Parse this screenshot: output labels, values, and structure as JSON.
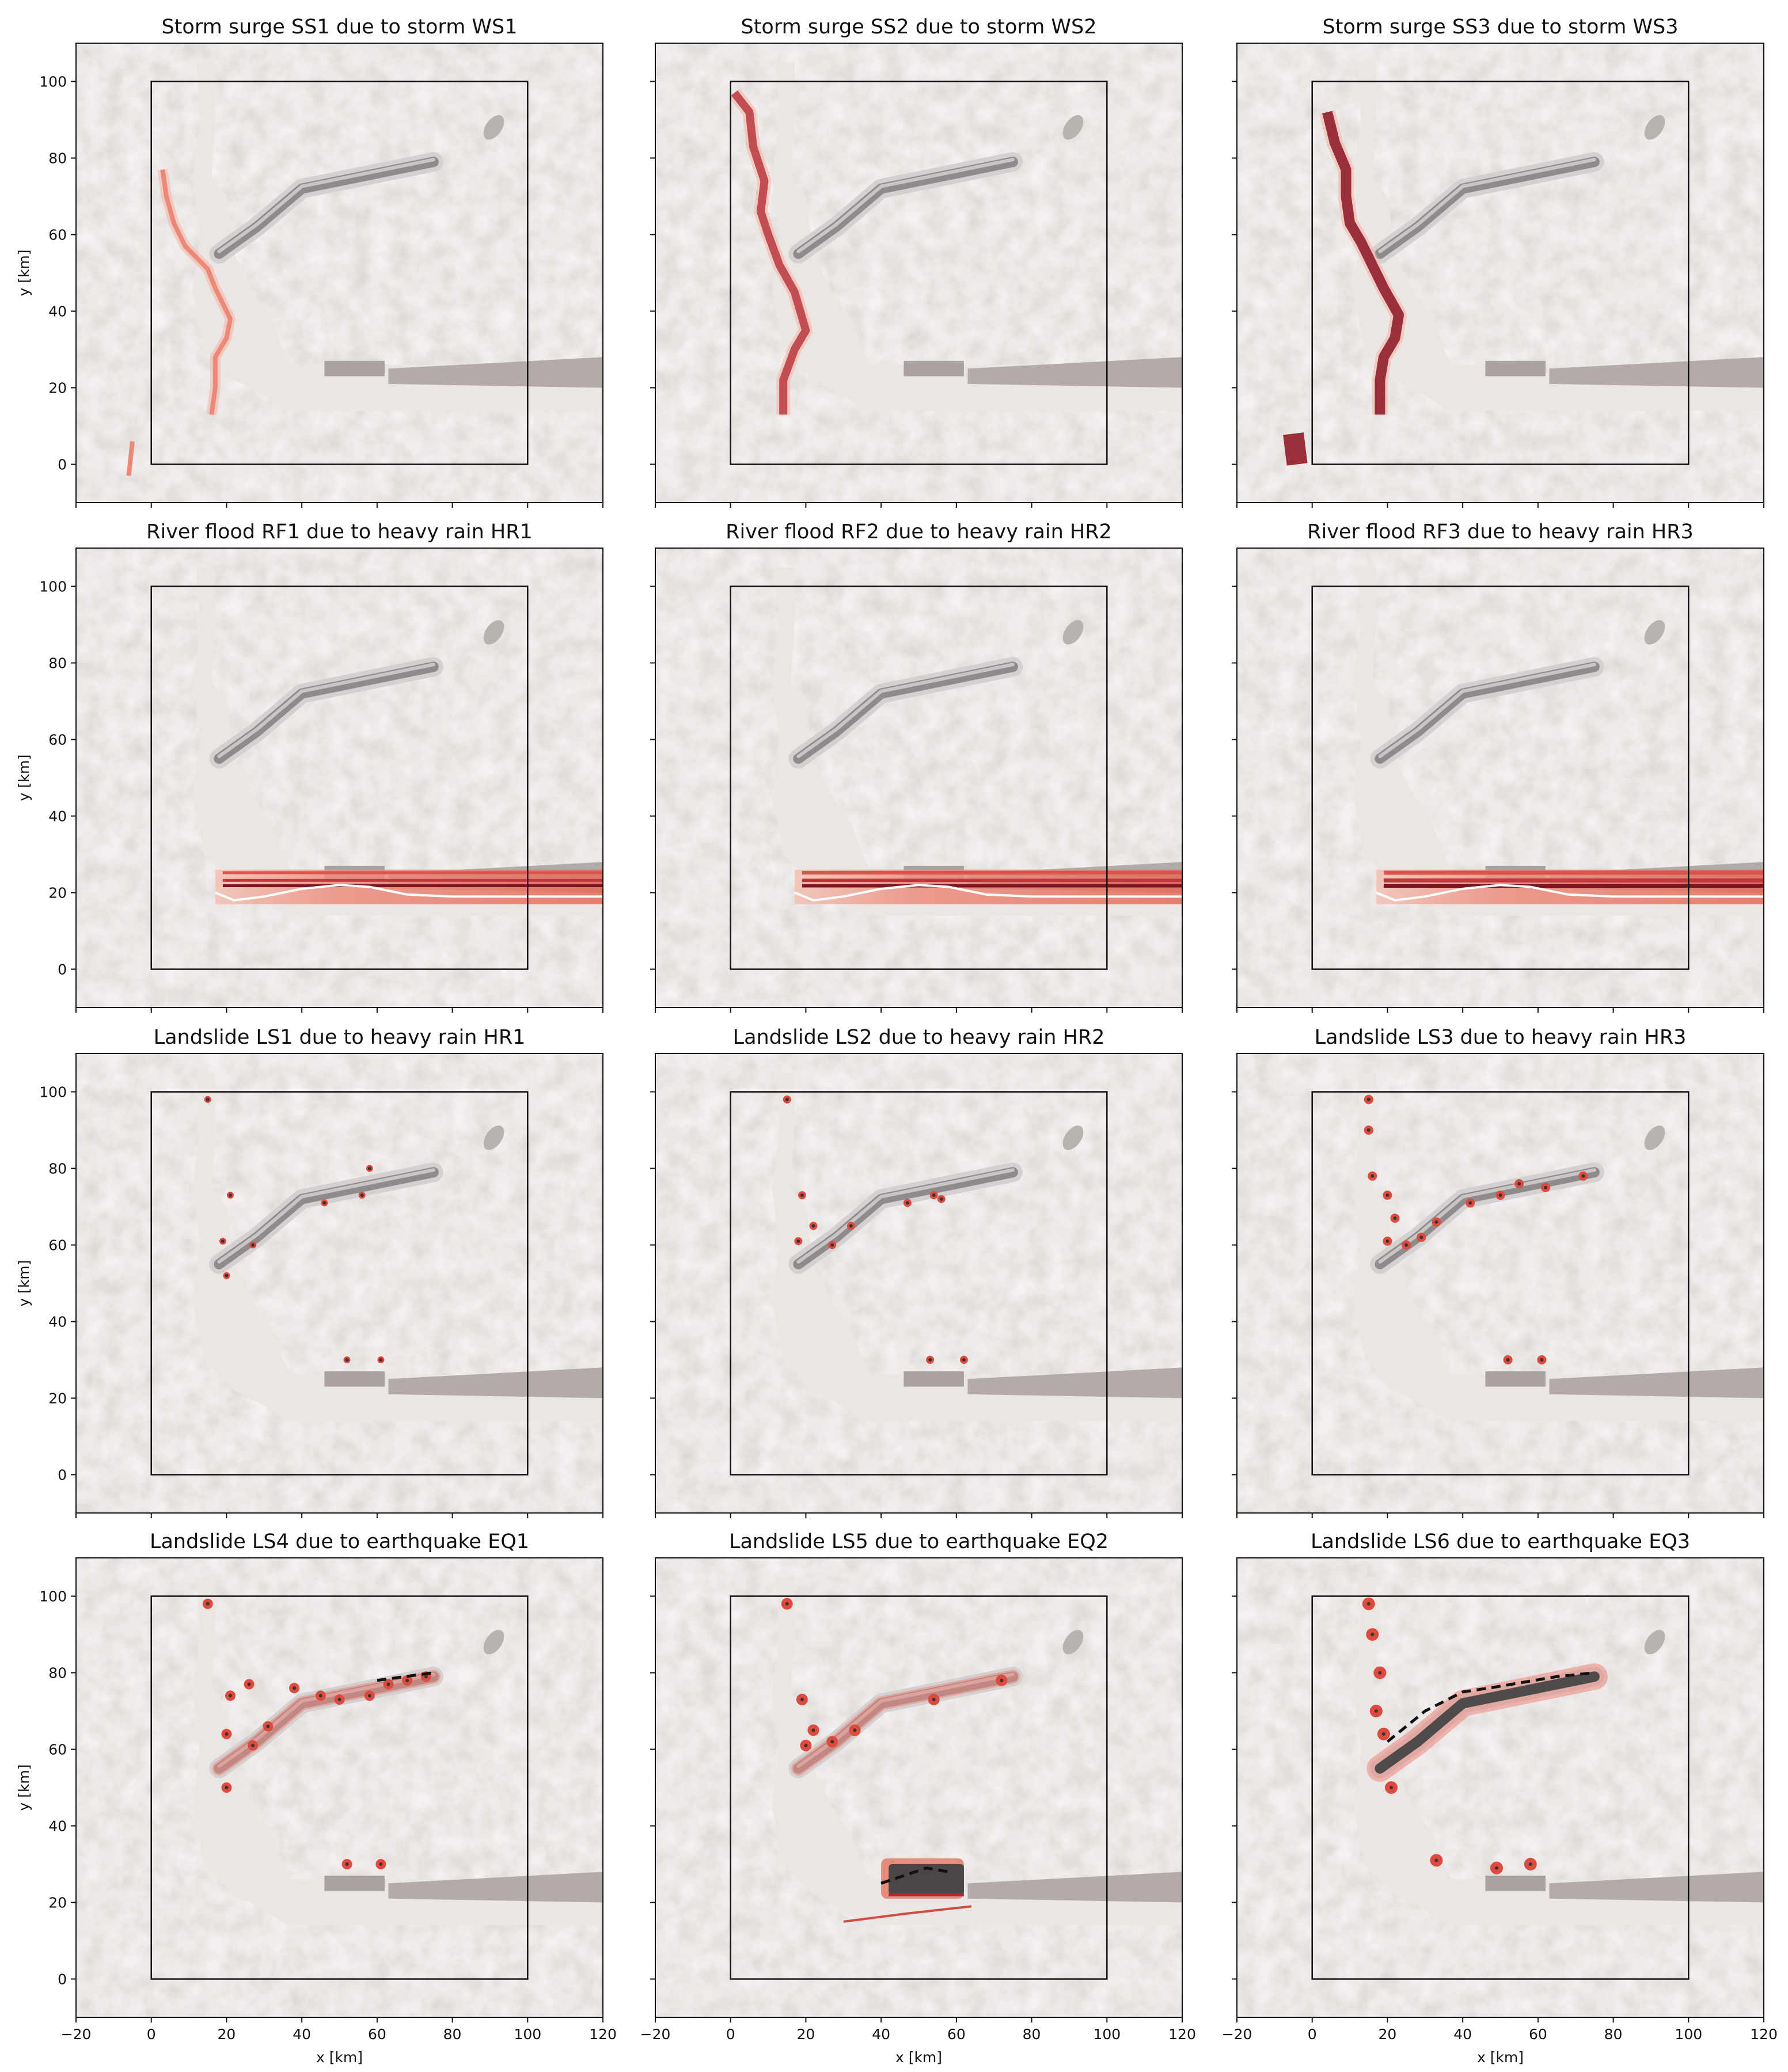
{
  "chart_data": {
    "type": "heatmap",
    "layout": "4x3 small multiples over a shaded-relief terrain map",
    "x_axis": {
      "label": "x [km]",
      "range": [
        -20,
        120
      ],
      "ticks": [
        -20,
        0,
        20,
        40,
        60,
        80,
        100,
        120
      ],
      "shown_on": "bottom row"
    },
    "y_axis": {
      "label": "y [km]",
      "range": [
        -10,
        110
      ],
      "ticks": [
        0,
        20,
        40,
        60,
        80,
        100
      ],
      "shown_on": "left column"
    },
    "domain_box": {
      "x": [
        0,
        100
      ],
      "y": [
        0,
        100
      ]
    },
    "colormap": "Reds (light red to dark red), dark grey for largest landslide depths",
    "river_centerline": [
      [
        17,
        20
      ],
      [
        22,
        18
      ],
      [
        30,
        19
      ],
      [
        40,
        21
      ],
      [
        50,
        22
      ],
      [
        58,
        21.5
      ],
      [
        68,
        19.5
      ],
      [
        80,
        19
      ],
      [
        100,
        19
      ],
      [
        120,
        19
      ]
    ],
    "ridge": [
      [
        18,
        55
      ],
      [
        28,
        62
      ],
      [
        40,
        72
      ],
      [
        55,
        75
      ],
      [
        75,
        79
      ]
    ],
    "panels": [
      {
        "title": "Storm surge SS1 due to storm WS1",
        "hazard": "storm_surge",
        "intensity": 1,
        "surge_line": [
          [
            16,
            13
          ],
          [
            17,
            20
          ],
          [
            17,
            28
          ],
          [
            20,
            33
          ],
          [
            21,
            38
          ],
          [
            17,
            46
          ],
          [
            15,
            51
          ],
          [
            9,
            57
          ],
          [
            6,
            63
          ],
          [
            4,
            70
          ],
          [
            3,
            77
          ],
          [
            -5,
            6
          ],
          [
            -6,
            -3
          ]
        ]
      },
      {
        "title": "Storm surge SS2 due to storm WS2",
        "hazard": "storm_surge",
        "intensity": 2,
        "surge_line": [
          [
            14,
            13
          ],
          [
            14,
            22
          ],
          [
            17,
            30
          ],
          [
            20,
            35
          ],
          [
            17,
            45
          ],
          [
            13,
            52
          ],
          [
            10,
            60
          ],
          [
            8,
            66
          ],
          [
            9,
            74
          ],
          [
            6,
            83
          ],
          [
            5,
            92
          ],
          [
            1,
            97
          ],
          [
            -7,
            106
          ]
        ]
      },
      {
        "title": "Storm surge SS3 due to storm WS3",
        "hazard": "storm_surge",
        "intensity": 3,
        "surge_line": [
          [
            18,
            13
          ],
          [
            18,
            22
          ],
          [
            19,
            28
          ],
          [
            22,
            33
          ],
          [
            23,
            39
          ],
          [
            19,
            46
          ],
          [
            16,
            52
          ],
          [
            13,
            58
          ],
          [
            10,
            63
          ],
          [
            9,
            70
          ],
          [
            9,
            77
          ],
          [
            6,
            84
          ],
          [
            4,
            92
          ],
          [
            -4,
            0
          ],
          [
            -5,
            8
          ]
        ]
      },
      {
        "title": "River flood RF1 due to heavy rain HR1",
        "hazard": "river_flood",
        "intensity": 1,
        "flood_x_range": [
          17,
          120
        ],
        "flood_y_range": [
          17,
          26
        ]
      },
      {
        "title": "River flood RF2 due to heavy rain HR2",
        "hazard": "river_flood",
        "intensity": 2,
        "flood_x_range": [
          17,
          120
        ],
        "flood_y_range": [
          17,
          26
        ]
      },
      {
        "title": "River flood RF3 due to heavy rain HR3",
        "hazard": "river_flood",
        "intensity": 3,
        "flood_x_range": [
          17,
          120
        ],
        "flood_y_range": [
          17,
          26
        ]
      },
      {
        "title": "Landslide LS1 due to heavy rain HR1",
        "hazard": "landslide",
        "intensity": 1,
        "spots": [
          [
            15,
            98
          ],
          [
            21,
            73
          ],
          [
            19,
            61
          ],
          [
            20,
            52
          ],
          [
            27,
            60
          ],
          [
            46,
            71
          ],
          [
            56,
            73
          ],
          [
            58,
            80
          ],
          [
            52,
            30
          ],
          [
            61,
            30
          ]
        ]
      },
      {
        "title": "Landslide LS2 due to heavy rain HR2",
        "hazard": "landslide",
        "intensity": 2,
        "spots": [
          [
            15,
            98
          ],
          [
            19,
            73
          ],
          [
            22,
            65
          ],
          [
            18,
            61
          ],
          [
            27,
            60
          ],
          [
            32,
            65
          ],
          [
            47,
            71
          ],
          [
            54,
            73
          ],
          [
            56,
            72
          ],
          [
            53,
            30
          ],
          [
            62,
            30
          ]
        ]
      },
      {
        "title": "Landslide LS3 due to heavy rain HR3",
        "hazard": "landslide",
        "intensity": 3,
        "spots": [
          [
            15,
            98
          ],
          [
            15,
            90
          ],
          [
            16,
            78
          ],
          [
            20,
            73
          ],
          [
            22,
            67
          ],
          [
            20,
            61
          ],
          [
            25,
            60
          ],
          [
            29,
            62
          ],
          [
            33,
            66
          ],
          [
            42,
            71
          ],
          [
            50,
            73
          ],
          [
            55,
            76
          ],
          [
            62,
            75
          ],
          [
            72,
            78
          ],
          [
            52,
            30
          ],
          [
            61,
            30
          ]
        ]
      },
      {
        "title": "Landslide LS4 due to earthquake EQ1",
        "hazard": "landslide",
        "intensity": 4,
        "spots": [
          [
            15,
            98
          ],
          [
            21,
            74
          ],
          [
            26,
            77
          ],
          [
            20,
            64
          ],
          [
            27,
            61
          ],
          [
            31,
            66
          ],
          [
            38,
            76
          ],
          [
            45,
            74
          ],
          [
            50,
            73
          ],
          [
            58,
            74
          ],
          [
            63,
            77
          ],
          [
            68,
            78
          ],
          [
            73,
            79
          ],
          [
            52,
            30
          ],
          [
            61,
            30
          ],
          [
            20,
            50
          ]
        ],
        "scarp_dashed": [
          [
            60,
            78
          ],
          [
            75,
            80
          ]
        ]
      },
      {
        "title": "Landslide LS5 due to earthquake EQ2",
        "hazard": "landslide",
        "intensity": 5,
        "spots": [
          [
            15,
            98
          ],
          [
            19,
            73
          ],
          [
            22,
            65
          ],
          [
            20,
            61
          ],
          [
            27,
            62
          ],
          [
            33,
            65
          ],
          [
            54,
            73
          ],
          [
            72,
            78
          ]
        ],
        "deposit_x_range": [
          40,
          62
        ],
        "deposit_y_range": [
          22,
          30
        ],
        "scarp_dashed": [
          [
            40,
            25
          ],
          [
            52,
            29
          ],
          [
            58,
            28
          ]
        ],
        "runout_line": [
          [
            30,
            15
          ],
          [
            46,
            17
          ],
          [
            64,
            19
          ]
        ]
      },
      {
        "title": "Landslide LS6 due to earthquake EQ3",
        "hazard": "landslide",
        "intensity": 6,
        "spots": [
          [
            15,
            98
          ],
          [
            16,
            90
          ],
          [
            18,
            80
          ],
          [
            17,
            70
          ],
          [
            19,
            64
          ],
          [
            21,
            50
          ],
          [
            33,
            31
          ],
          [
            49,
            29
          ],
          [
            58,
            30
          ]
        ],
        "scarp_dashed": [
          [
            20,
            62
          ],
          [
            30,
            70
          ],
          [
            40,
            75
          ],
          [
            47,
            76
          ],
          [
            65,
            79
          ],
          [
            75,
            80
          ]
        ]
      }
    ]
  }
}
